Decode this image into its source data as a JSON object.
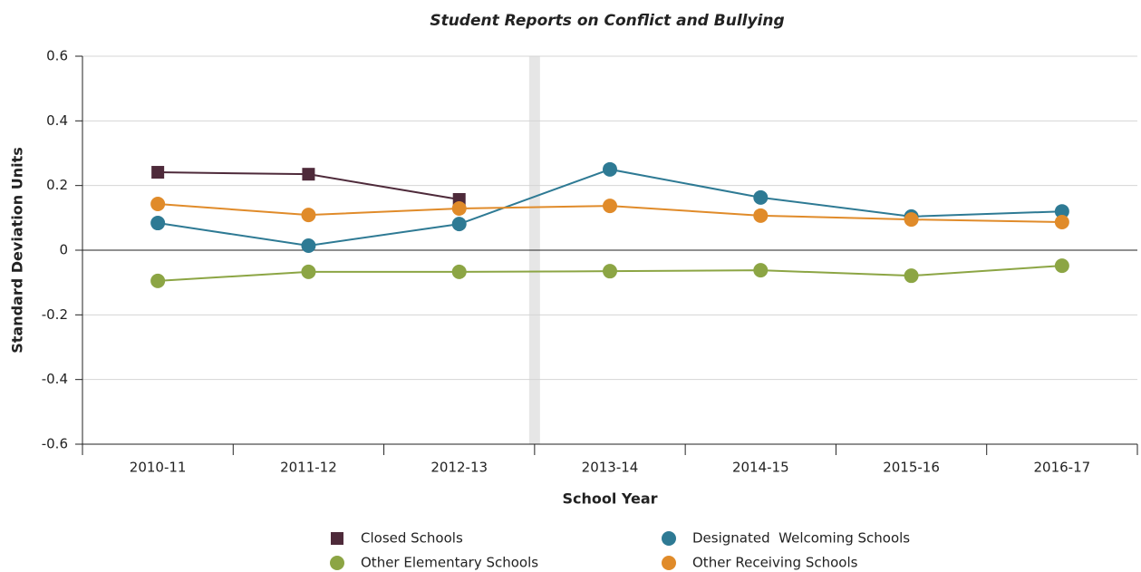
{
  "chart_data": {
    "type": "line",
    "title": "Student Reports on Conflict and Bullying",
    "x_label": "School Year",
    "y_label": "Standard Deviation Units",
    "categories": [
      "2010-11",
      "2011-12",
      "2012-13",
      "2013-14",
      "2014-15",
      "2015-16",
      "2016-17"
    ],
    "series": [
      {
        "name": "Closed Schools",
        "color": "#4e2a3a",
        "marker": "square",
        "values": [
          0.241,
          0.235,
          0.157,
          null,
          null,
          null,
          null
        ]
      },
      {
        "name": "Designated  Welcoming Schools",
        "color": "#2e7a94",
        "marker": "circle",
        "values": [
          0.084,
          0.014,
          0.081,
          0.25,
          0.163,
          0.104,
          0.12
        ]
      },
      {
        "name": "Other Elementary Schools",
        "color": "#8ca544",
        "marker": "circle",
        "values": [
          -0.095,
          -0.067,
          -0.067,
          -0.065,
          -0.062,
          -0.079,
          -0.048
        ]
      },
      {
        "name": "Other Receiving Schools",
        "color": "#e08b2a",
        "marker": "circle",
        "values": [
          0.143,
          0.109,
          0.129,
          0.137,
          0.107,
          0.095,
          0.087
        ]
      }
    ],
    "ylim": [
      -0.6,
      0.6
    ],
    "yticks": [
      -0.6,
      -0.4,
      -0.2,
      0,
      0.2,
      0.4,
      0.6
    ],
    "grid": true
  }
}
